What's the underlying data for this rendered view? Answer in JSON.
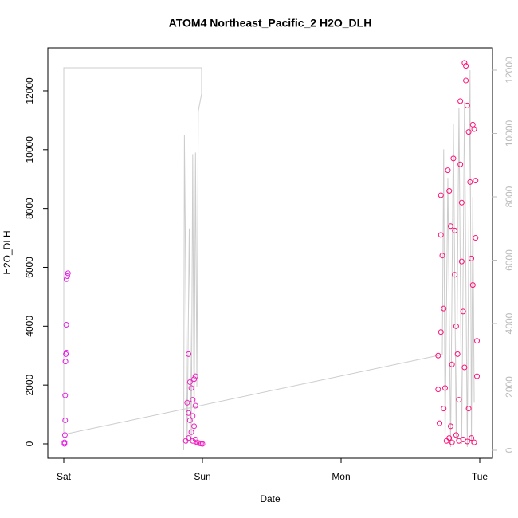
{
  "chart_data": {
    "type": "scatter",
    "title": "ATOM4 Northeast_Pacific_2 H2O_DLH",
    "x_label": "Date",
    "y_label": "H2O_DLH",
    "xlim": [
      -0.115,
      3.092
    ],
    "ylim": [
      -488,
      13462
    ],
    "y2lim": [
      -252,
      12704
    ],
    "xticks": [
      {
        "value": 0,
        "label": "Sat"
      },
      {
        "value": 1,
        "label": "Sun"
      },
      {
        "value": 2,
        "label": "Mon"
      },
      {
        "value": 3,
        "label": "Tue"
      }
    ],
    "yticks": [
      0,
      2000,
      4000,
      6000,
      8000,
      10000,
      12000
    ],
    "y2ticks": [
      0,
      2000,
      4000,
      6000,
      8000,
      10000,
      12000
    ],
    "series": [
      {
        "color": "#e020e0",
        "x": [
          0.03,
          0.025,
          0.02,
          0.018,
          0.02,
          0.015,
          0.012,
          0.01,
          0.01,
          0.008,
          0.005,
          0.005
        ],
        "values": [
          5800,
          5700,
          5600,
          4050,
          3100,
          3050,
          2800,
          1650,
          800,
          300,
          50,
          0
        ]
      },
      {
        "color": "#f020c0",
        "x": [
          0.9,
          0.95,
          0.94,
          0.91,
          0.92,
          0.93,
          0.89,
          0.95,
          0.9,
          0.93,
          0.91,
          0.94,
          0.92,
          0.9,
          0.93,
          0.96,
          0.98,
          1.0,
          0.88,
          0.95,
          0.97,
          0.99
        ],
        "values": [
          3050,
          2300,
          2200,
          2100,
          1900,
          1500,
          1400,
          1300,
          1050,
          950,
          800,
          600,
          400,
          200,
          100,
          50,
          20,
          0,
          100,
          150,
          30,
          10
        ]
      },
      {
        "color": "#ff1077",
        "x": [
          2.7,
          2.7,
          2.71,
          2.72,
          2.72,
          2.73,
          2.72,
          2.74,
          2.75,
          2.77,
          2.78,
          2.79,
          2.8,
          2.81,
          2.82,
          2.82,
          2.83,
          2.84,
          2.86,
          2.86,
          2.87,
          2.87,
          2.88,
          2.89,
          2.9,
          2.9,
          2.91,
          2.92,
          2.93,
          2.94,
          2.95,
          2.95,
          2.96,
          2.97,
          2.97,
          2.98,
          2.98,
          2.76,
          2.78,
          2.8,
          2.83,
          2.85,
          2.88,
          2.91,
          2.94,
          2.96,
          2.85,
          2.89,
          2.92,
          2.79,
          2.74
        ],
        "values": [
          3000,
          1850,
          700,
          8450,
          7100,
          6400,
          3800,
          4600,
          1900,
          9300,
          8600,
          7400,
          2700,
          9700,
          7250,
          5750,
          4000,
          3050,
          11650,
          9500,
          8200,
          6200,
          4500,
          12950,
          12850,
          12350,
          11500,
          10600,
          8900,
          6300,
          5400,
          10850,
          10700,
          8950,
          7000,
          3500,
          2300,
          100,
          200,
          50,
          300,
          100,
          150,
          80,
          200,
          50,
          1500,
          2600,
          1200,
          600,
          1200
        ]
      },
      {
        "type": "line",
        "axis": "y2",
        "color": "#cccccc",
        "x": [
          0,
          0,
          0.994,
          0.994,
          0.97,
          0.96,
          0.95,
          0.94,
          0.93,
          0.92,
          0.905,
          0.89,
          0.88,
          0.87,
          0.865,
          0,
          0,
          2.73,
          2.74,
          2.75,
          2.77,
          2.79,
          2.81,
          2.83,
          2.85,
          2.87,
          2.89,
          2.91,
          2.93,
          2.94,
          2.95,
          2.96
        ],
        "values": [
          500,
          12075,
          12075,
          11250,
          10700,
          2000,
          9400,
          500,
          9350,
          300,
          7000,
          200,
          5000,
          9950,
          0,
          null,
          500,
          3020,
          9500,
          200,
          8600,
          100,
          10300,
          300,
          10800,
          200,
          11000,
          100,
          12000,
          200,
          8000,
          1500
        ]
      }
    ]
  }
}
